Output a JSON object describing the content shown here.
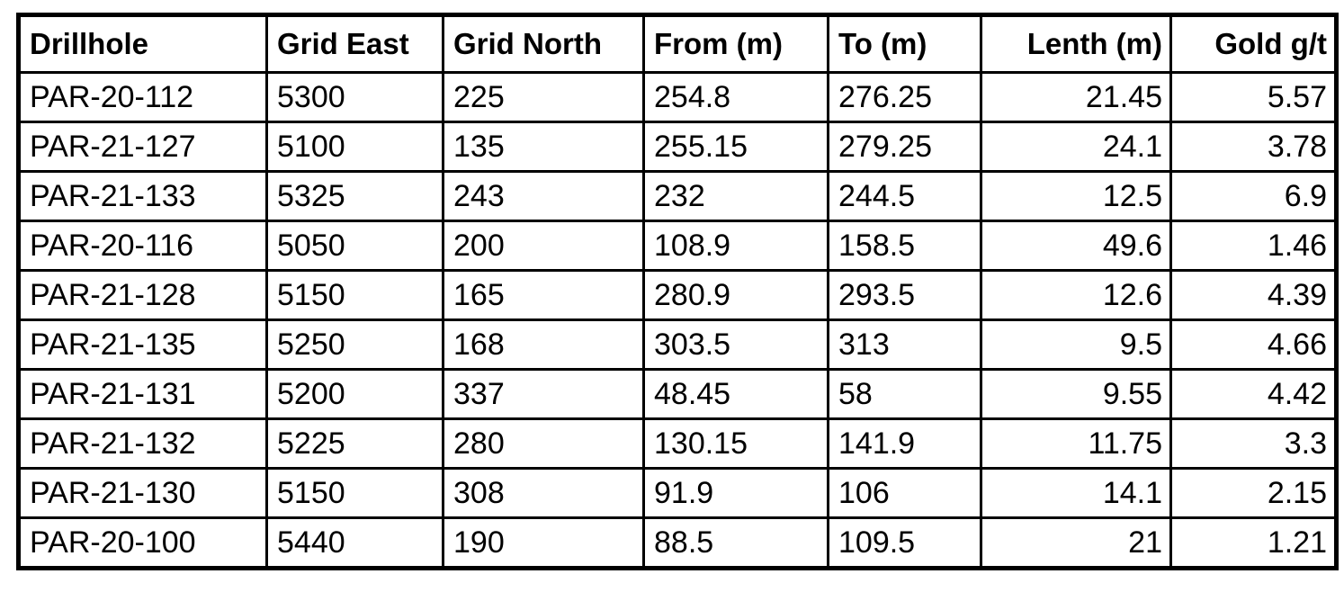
{
  "table": {
    "columns": [
      "Drillhole",
      "Grid East",
      "Grid North",
      "From (m)",
      "To (m)",
      "Lenth (m)",
      "Gold g/t"
    ],
    "rows": [
      [
        "PAR-20-112",
        "5300",
        "225",
        "254.8",
        "276.25",
        "21.45",
        "5.57"
      ],
      [
        "PAR-21-127",
        "5100",
        "135",
        "255.15",
        "279.25",
        "24.1",
        "3.78"
      ],
      [
        "PAR-21-133",
        "5325",
        "243",
        "232",
        "244.5",
        "12.5",
        "6.9"
      ],
      [
        "PAR-20-116",
        "5050",
        "200",
        "108.9",
        "158.5",
        "49.6",
        "1.46"
      ],
      [
        "PAR-21-128",
        "5150",
        "165",
        "280.9",
        "293.5",
        "12.6",
        "4.39"
      ],
      [
        "PAR-21-135",
        "5250",
        "168",
        "303.5",
        "313",
        "9.5",
        "4.66"
      ],
      [
        "PAR-21-131",
        "5200",
        "337",
        "48.45",
        "58",
        "9.55",
        "4.42"
      ],
      [
        "PAR-21-132",
        "5225",
        "280",
        "130.15",
        "141.9",
        "11.75",
        "3.3"
      ],
      [
        "PAR-21-130",
        "5150",
        "308",
        "91.9",
        "106",
        "14.1",
        "2.15"
      ],
      [
        "PAR-20-100",
        "5440",
        "190",
        "88.5",
        "109.5",
        "21",
        "1.21"
      ]
    ]
  }
}
